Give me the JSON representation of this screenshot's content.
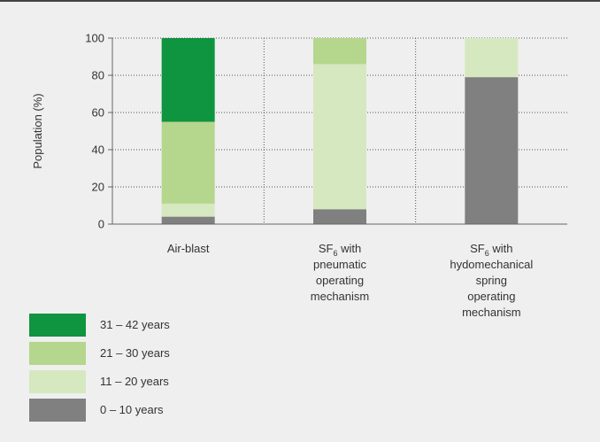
{
  "chart_data": {
    "type": "bar",
    "stacked": true,
    "ylabel": "Population (%)",
    "ylim": [
      0,
      100
    ],
    "yticks": [
      0,
      20,
      40,
      60,
      80,
      100
    ],
    "grid": true,
    "categories": [
      {
        "lines": [
          "Air-blast"
        ]
      },
      {
        "lines": [
          [
            "SF",
            "6",
            " with"
          ],
          "pneumatic",
          "operating",
          "mechanism"
        ]
      },
      {
        "lines": [
          [
            "SF",
            "6",
            " with"
          ],
          "hydomechanical",
          "spring",
          "operating",
          "mechanism"
        ]
      }
    ],
    "series": [
      {
        "name": "0 – 10 years",
        "color": "#808080",
        "values": [
          4,
          8,
          79
        ]
      },
      {
        "name": "11 – 20 years",
        "color": "#d6e8c0",
        "values": [
          7,
          78,
          21
        ]
      },
      {
        "name": "21 – 30 years",
        "color": "#b5d68d",
        "values": [
          44,
          14,
          0
        ]
      },
      {
        "name": "31 – 42 years",
        "color": "#0f9440",
        "values": [
          45,
          0,
          0
        ]
      }
    ],
    "legend_order": [
      3,
      2,
      1,
      0
    ],
    "legend_position": "bottom-left"
  }
}
